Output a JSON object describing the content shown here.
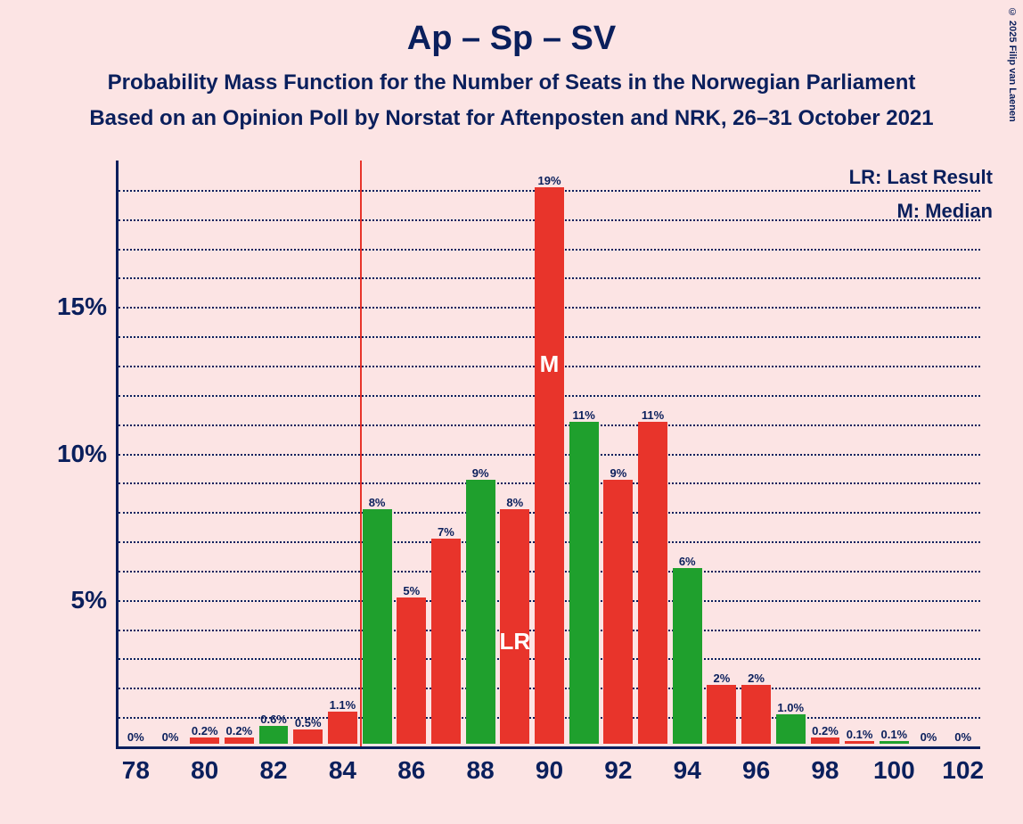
{
  "copyright": "© 2025 Filip van Laenen",
  "title": "Ap – Sp – SV",
  "subtitle1": "Probability Mass Function for the Number of Seats in the Norwegian Parliament",
  "subtitle2": "Based on an Opinion Poll by Norstat for Aftenposten and NRK, 26–31 October 2021",
  "legend": {
    "lr": "LR: Last Result",
    "m": "M: Median"
  },
  "chart": {
    "type": "bar",
    "background_color": "#fce4e4",
    "axis_color": "#0a1f5c",
    "grid_color": "#0a1f5c",
    "colors": {
      "green": "#1fa02d",
      "red": "#e8342b"
    },
    "ylim": [
      0,
      20
    ],
    "ytick_major": [
      5,
      10,
      15
    ],
    "ytick_minor_step": 1,
    "xlim": [
      77.5,
      102.5
    ],
    "xticks": [
      78,
      80,
      82,
      84,
      86,
      88,
      90,
      92,
      94,
      96,
      98,
      100,
      102
    ],
    "bar_width": 0.85,
    "vline_x": 84.5,
    "median_x": 90,
    "lr_x": 89,
    "bars": [
      {
        "x": 78,
        "v": 0,
        "label": "0%",
        "color": "green"
      },
      {
        "x": 79,
        "v": 0,
        "label": "0%",
        "color": "green"
      },
      {
        "x": 80,
        "v": 0.2,
        "label": "0.2%",
        "color": "red"
      },
      {
        "x": 81,
        "v": 0.2,
        "label": "0.2%",
        "color": "red"
      },
      {
        "x": 82,
        "v": 0.6,
        "label": "0.6%",
        "color": "green"
      },
      {
        "x": 83,
        "v": 0.5,
        "label": "0.5%",
        "color": "red"
      },
      {
        "x": 84,
        "v": 1.1,
        "label": "1.1%",
        "color": "red"
      },
      {
        "x": 85,
        "v": 8,
        "label": "8%",
        "color": "green"
      },
      {
        "x": 86,
        "v": 5,
        "label": "5%",
        "color": "red"
      },
      {
        "x": 87,
        "v": 7,
        "label": "7%",
        "color": "red"
      },
      {
        "x": 88,
        "v": 9,
        "label": "9%",
        "color": "green"
      },
      {
        "x": 89,
        "v": 8,
        "label": "8%",
        "color": "red"
      },
      {
        "x": 90,
        "v": 19,
        "label": "19%",
        "color": "red"
      },
      {
        "x": 91,
        "v": 11,
        "label": "11%",
        "color": "green"
      },
      {
        "x": 92,
        "v": 9,
        "label": "9%",
        "color": "red"
      },
      {
        "x": 93,
        "v": 11,
        "label": "11%",
        "color": "red"
      },
      {
        "x": 94,
        "v": 6,
        "label": "6%",
        "color": "green"
      },
      {
        "x": 95,
        "v": 2,
        "label": "2%",
        "color": "red"
      },
      {
        "x": 96,
        "v": 2,
        "label": "2%",
        "color": "red"
      },
      {
        "x": 97,
        "v": 1.0,
        "label": "1.0%",
        "color": "green"
      },
      {
        "x": 98,
        "v": 0.2,
        "label": "0.2%",
        "color": "red"
      },
      {
        "x": 99,
        "v": 0.1,
        "label": "0.1%",
        "color": "red"
      },
      {
        "x": 100,
        "v": 0.1,
        "label": "0.1%",
        "color": "green"
      },
      {
        "x": 101,
        "v": 0,
        "label": "0%",
        "color": "red"
      },
      {
        "x": 102,
        "v": 0,
        "label": "0%",
        "color": "red"
      }
    ],
    "inbar_labels": {
      "M": "M",
      "LR": "LR"
    },
    "ytick_labels": {
      "5": "5%",
      "10": "10%",
      "15": "15%"
    }
  }
}
